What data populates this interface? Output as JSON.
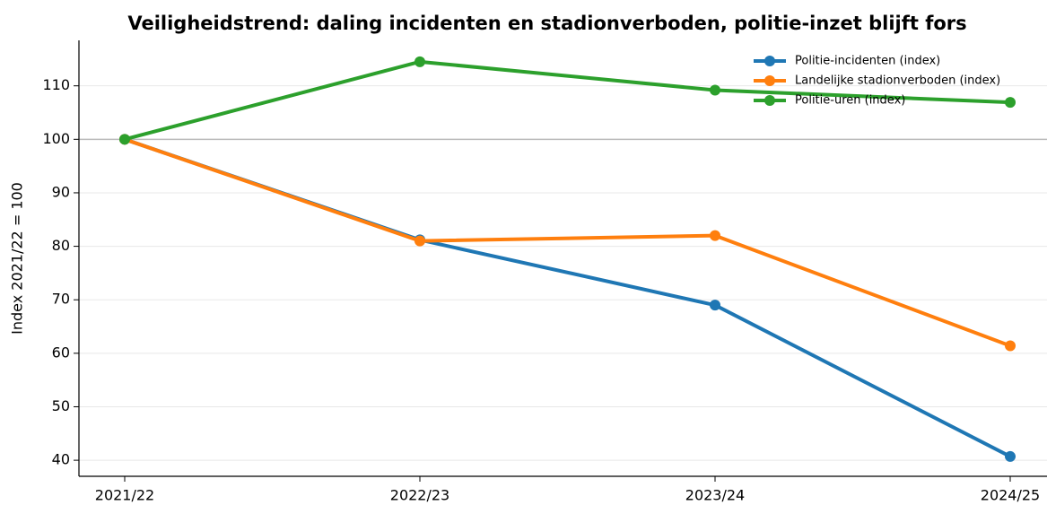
{
  "chart_data": {
    "type": "line",
    "title": "Veiligheidstrend: daling incidenten en stadionverboden, politie-inzet blijft fors",
    "y_label": "Index 2021/22 = 100",
    "categories": [
      "2021/22",
      "2022/23",
      "2023/24",
      "2024/25"
    ],
    "series": [
      {
        "name": "Politie-incidenten (index)",
        "color": "#1f77b4",
        "values": [
          100,
          81.2,
          69,
          40.7
        ]
      },
      {
        "name": "Landelijke stadionverboden (index)",
        "color": "#ff7f0e",
        "values": [
          100,
          81,
          82,
          61.4
        ]
      },
      {
        "name": "Politie-uren (index)",
        "color": "#2ca02c",
        "values": [
          100,
          114.5,
          109.2,
          106.9
        ]
      }
    ],
    "reference_line": 100,
    "ylim": [
      37,
      118.5
    ],
    "yticks": [
      40,
      50,
      60,
      70,
      80,
      90,
      100,
      110
    ],
    "grid": true,
    "legend": "upper right"
  }
}
